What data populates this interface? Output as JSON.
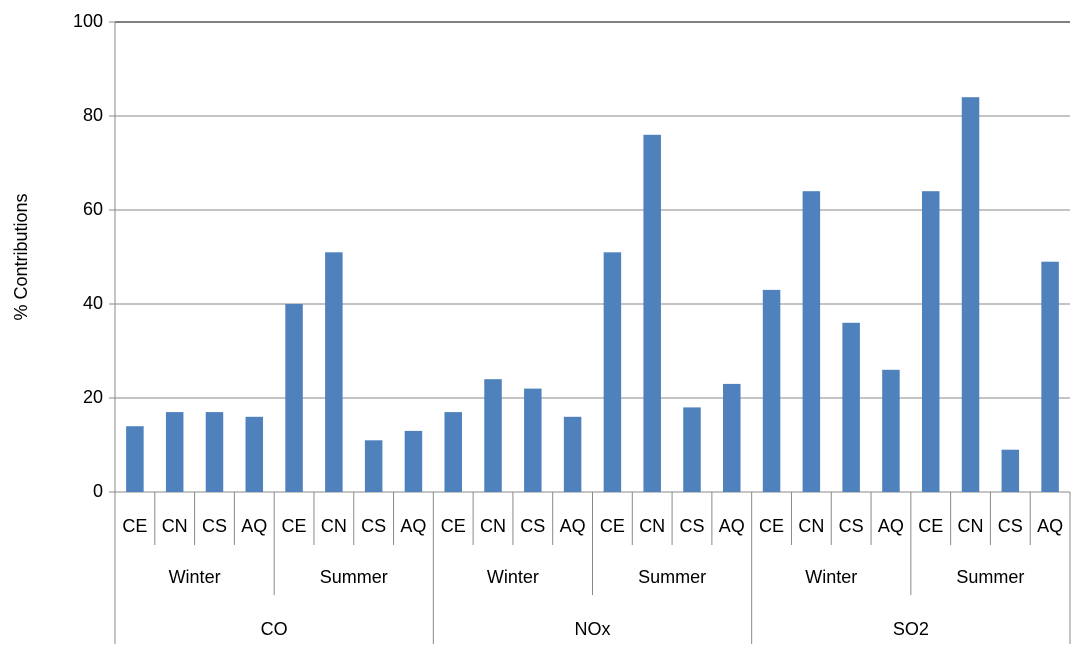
{
  "chart_data": {
    "type": "bar",
    "y_label": "% Contributions",
    "categories": [
      "CE",
      "CN",
      "CS",
      "AQ",
      "CE",
      "CN",
      "CS",
      "AQ",
      "CE",
      "CN",
      "CS",
      "AQ",
      "CE",
      "CN",
      "CS",
      "AQ",
      "CE",
      "CN",
      "CS",
      "AQ",
      "CE",
      "CN",
      "CS",
      "AQ"
    ],
    "subgroups": [
      "Winter",
      "Summer",
      "Winter",
      "Summer",
      "Winter",
      "Summer"
    ],
    "groups": [
      "CO",
      "NOx",
      "SO2"
    ],
    "values": [
      14,
      17,
      17,
      16,
      40,
      51,
      11,
      13,
      17,
      24,
      22,
      16,
      51,
      76,
      18,
      23,
      43,
      64,
      36,
      26,
      64,
      84,
      9,
      49
    ],
    "color": "#4f81bd",
    "ylim": [
      0,
      100
    ],
    "yticks": [
      0,
      20,
      40,
      60,
      80,
      100
    ],
    "grid": true
  }
}
